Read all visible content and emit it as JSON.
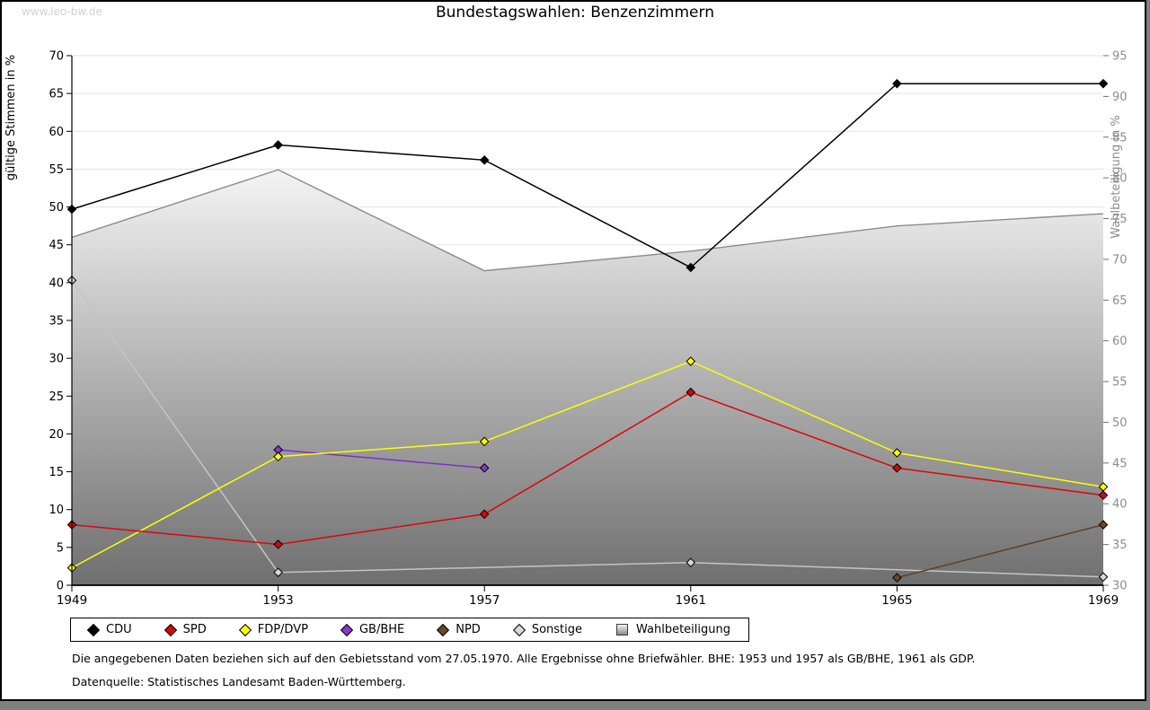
{
  "watermark": "www.leo-bw.de",
  "title": "Bundestagswahlen: Benzenzimmern",
  "footnotes": [
    "Die angegebenen Daten beziehen sich auf den Gebietsstand vom 27.05.1970. Alle Ergebnisse ohne Briefwähler. BHE: 1953 und 1957 als GB/BHE, 1961 als GDP.",
    "Datenquelle: Statistisches Landesamt Baden-Württemberg."
  ],
  "chart_data": {
    "type": "line",
    "title": "Bundestagswahlen: Benzenzimmern",
    "x_years": [
      1949,
      1953,
      1957,
      1961,
      1965,
      1969
    ],
    "left_axis": {
      "label": "gültige Stimmen in %",
      "min": 0,
      "max": 70,
      "step": 5
    },
    "right_axis": {
      "label": "Wahlbeteiligung in %",
      "min": 30,
      "max": 95,
      "step": 5
    },
    "grid": {
      "horizontal": true,
      "interval_left_axis": 5,
      "color": "#e3e3e3"
    },
    "legend_position": "bottom",
    "area_series": {
      "name": "Wahlbeteiligung",
      "axis": "right",
      "stroke": "#8c8c8c",
      "fill_top": "#f5f5f5",
      "fill_bottom": "#6f6f6f",
      "points": [
        [
          1949,
          72.7
        ],
        [
          1953,
          81.0
        ],
        [
          1957,
          68.6
        ],
        [
          1961,
          71.0
        ],
        [
          1965,
          74.1
        ],
        [
          1969,
          75.6
        ]
      ]
    },
    "series": [
      {
        "name": "CDU",
        "color": "#000000",
        "marker_fill": "#000000",
        "points": [
          [
            1949,
            49.7
          ],
          [
            1953,
            58.2
          ],
          [
            1957,
            56.2
          ],
          [
            1961,
            42.0
          ],
          [
            1965,
            66.3
          ],
          [
            1969,
            66.3
          ]
        ]
      },
      {
        "name": "SPD",
        "color": "#dc0606",
        "marker_fill": "#d40808",
        "points": [
          [
            1949,
            8.0
          ],
          [
            1953,
            5.4
          ],
          [
            1957,
            9.4
          ],
          [
            1961,
            25.5
          ],
          [
            1965,
            15.5
          ],
          [
            1969,
            11.9
          ]
        ]
      },
      {
        "name": "FDP/DVP",
        "color": "#ffff00",
        "marker_fill": "#ffff00",
        "points": [
          [
            1949,
            2.3
          ],
          [
            1953,
            17.0
          ],
          [
            1957,
            19.0
          ],
          [
            1961,
            29.6
          ],
          [
            1965,
            17.5
          ],
          [
            1969,
            13.0
          ]
        ]
      },
      {
        "name": "GB/BHE",
        "color": "#7f2fc4",
        "marker_fill": "#8a36d2",
        "points": [
          [
            1953,
            17.9
          ],
          [
            1957,
            15.5
          ]
        ]
      },
      {
        "name": "NPD",
        "color": "#634024",
        "marker_fill": "#6b4628",
        "points": [
          [
            1965,
            1.0
          ],
          [
            1969,
            8.0
          ]
        ]
      },
      {
        "name": "Sonstige",
        "color": "#c4c4c4",
        "marker_fill": "#d8d8d8",
        "points": [
          [
            1949,
            40.3
          ],
          [
            1953,
            1.7
          ],
          [
            1961,
            3.0
          ],
          [
            1969,
            1.1
          ]
        ]
      }
    ]
  }
}
